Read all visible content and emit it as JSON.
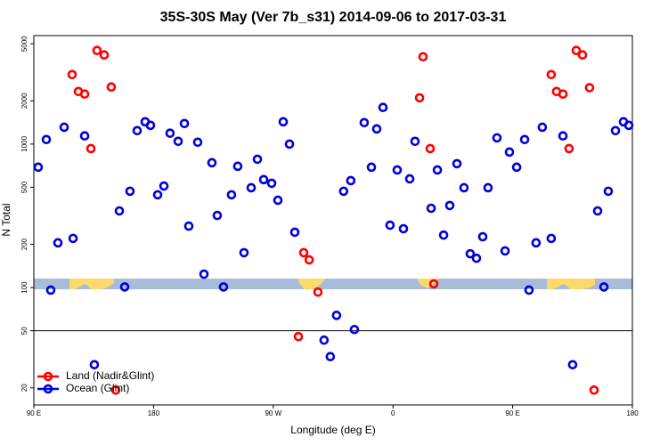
{
  "chart_data": {
    "type": "scatter",
    "title": "35S-30S May (Ver 7b_s31)   2014-09-06 to 2017-03-31",
    "x_label": "Longitude (deg E)",
    "y_label": "N Total",
    "log_y": true,
    "xlim": [
      90,
      540
    ],
    "xticks": [
      {
        "value": 90,
        "label": "90 E"
      },
      180,
      {
        "value": 270,
        "label": "90 W"
      },
      {
        "value": 360,
        "label": "0"
      },
      {
        "value": 450,
        "label": "90 E"
      },
      {
        "value": 540,
        "label": "180"
      }
    ],
    "ylim": [
      15.2,
      5700
    ],
    "yticks": [
      20,
      50,
      100,
      200,
      500,
      1000,
      2000,
      5000
    ],
    "reference_line": 50,
    "legend": "bottom-left",
    "series": [
      {
        "name": "Land (Nadir&Glint)",
        "color": "#ff0000",
        "x": [
          118.8,
          123.5,
          128.2,
          132.9,
          137.5,
          142.9,
          148.2,
          151.6,
          288.9,
          292.9,
          297,
          303.6,
          380,
          382.6,
          388,
          390.7,
          479,
          483,
          487.8,
          492.4,
          497.8,
          502.5,
          507.8,
          511.2
        ],
        "values": [
          3050,
          2325,
          2230,
          930,
          4490,
          4180,
          2500,
          19.3,
          45.5,
          175,
          156,
          93,
          2100,
          4060,
          930,
          106,
          3050,
          2325,
          2230,
          930,
          4490,
          4180,
          2470,
          19.3
        ]
      },
      {
        "name": "Ocean (Glint)",
        "color": "#0000dd",
        "x": [
          93.3,
          99.4,
          102.7,
          108.1,
          112.8,
          119.5,
          128.2,
          135.5,
          154.3,
          158.3,
          162.3,
          167.7,
          173.7,
          177.7,
          183.1,
          187.8,
          192.4,
          198.5,
          203.2,
          206.5,
          213.2,
          217.9,
          223.9,
          227.9,
          232.6,
          238.6,
          243.3,
          248,
          253.4,
          258.1,
          262.8,
          268.8,
          273.5,
          277.5,
          282.2,
          286.2,
          308.2,
          312.9,
          317.6,
          322.9,
          328.3,
          331,
          338.4,
          343.8,
          347.8,
          352.5,
          357.8,
          363.2,
          367.9,
          372.6,
          376.6,
          388.7,
          393.4,
          398.1,
          402.7,
          408.1,
          413.4,
          418.1,
          422.8,
          427.5,
          431.5,
          438.2,
          444.3,
          447.6,
          453,
          459,
          462.3,
          467.6,
          472.3,
          479,
          487.8,
          495.1,
          513.9,
          518.6,
          521.9,
          527.3,
          533.3,
          537.3
        ],
        "values": [
          690,
          1075,
          96,
          205,
          1310,
          220,
          1140,
          29,
          342,
          101,
          469,
          1240,
          1430,
          1350,
          443,
          510,
          1190,
          1045,
          1390,
          268,
          1030,
          124,
          741,
          318,
          101,
          443,
          700,
          175,
          496,
          784,
          565,
          533,
          406,
          1430,
          1000,
          243,
          43,
          33,
          64,
          469,
          556,
          51,
          1410,
          690,
          1275,
          1800,
          272,
          660,
          257,
          572,
          1045,
          357,
          660,
          232,
          373,
          730,
          496,
          172,
          160,
          226,
          496,
          1105,
          180,
          880,
          690,
          1075,
          96,
          205,
          1310,
          220,
          1140,
          29,
          342,
          101,
          469,
          1240,
          1430,
          1350
        ]
      }
    ]
  }
}
